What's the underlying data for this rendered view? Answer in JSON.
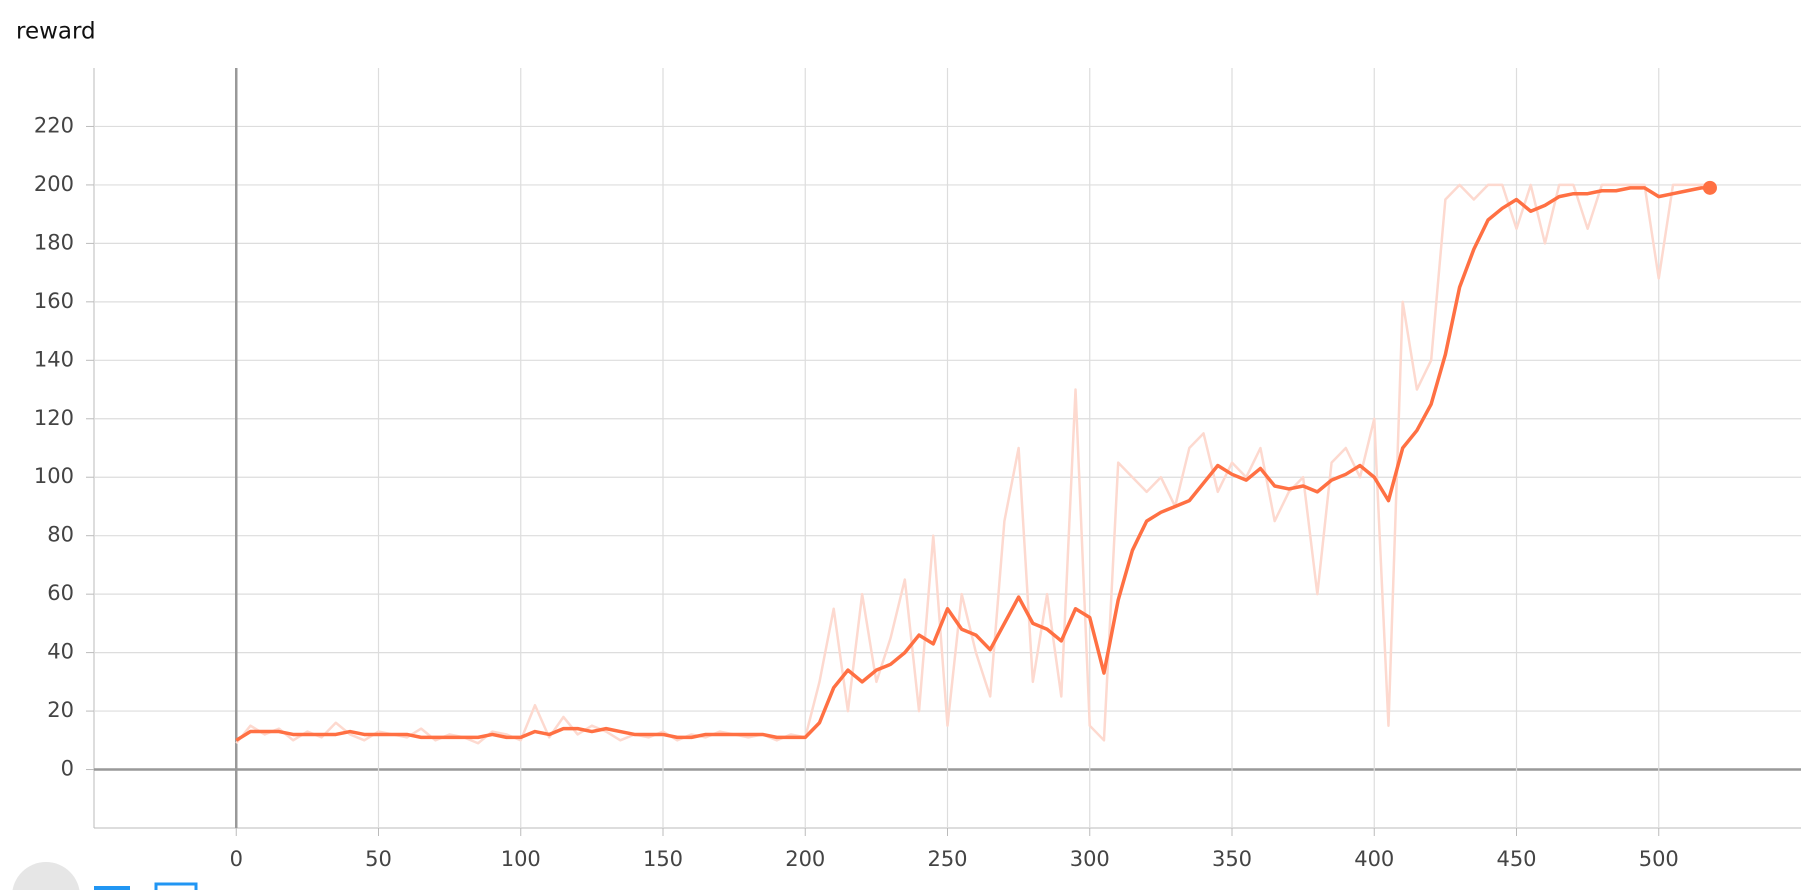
{
  "chart_data": {
    "type": "line",
    "title": "reward",
    "x": [
      0,
      5,
      10,
      15,
      20,
      25,
      30,
      35,
      40,
      45,
      50,
      55,
      60,
      65,
      70,
      75,
      80,
      85,
      90,
      95,
      100,
      105,
      110,
      115,
      120,
      125,
      130,
      135,
      140,
      145,
      150,
      155,
      160,
      165,
      170,
      175,
      180,
      185,
      190,
      195,
      200,
      205,
      210,
      215,
      220,
      225,
      230,
      235,
      240,
      245,
      250,
      255,
      260,
      265,
      270,
      275,
      280,
      285,
      290,
      295,
      300,
      305,
      310,
      315,
      320,
      325,
      330,
      335,
      340,
      345,
      350,
      355,
      360,
      365,
      370,
      375,
      380,
      385,
      390,
      395,
      400,
      405,
      410,
      415,
      420,
      425,
      430,
      435,
      440,
      445,
      450,
      455,
      460,
      465,
      470,
      475,
      480,
      485,
      490,
      495,
      500,
      505,
      510,
      515,
      518
    ],
    "series": [
      {
        "color": "#fdd9cf",
        "values": [
          9,
          15,
          12,
          14,
          10,
          13,
          11,
          16,
          12,
          10,
          13,
          12,
          11,
          14,
          10,
          12,
          11,
          9,
          13,
          12,
          10,
          22,
          11,
          18,
          12,
          15,
          13,
          10,
          12,
          11,
          13,
          10,
          12,
          11,
          13,
          12,
          11,
          12,
          10,
          12,
          11,
          30,
          55,
          20,
          60,
          30,
          45,
          65,
          20,
          80,
          15,
          60,
          40,
          25,
          85,
          110,
          30,
          60,
          25,
          130,
          15,
          10,
          105,
          100,
          95,
          100,
          90,
          110,
          115,
          95,
          105,
          100,
          110,
          85,
          95,
          100,
          60,
          105,
          110,
          100,
          120,
          15,
          160,
          130,
          140,
          195,
          200,
          195,
          200,
          200,
          185,
          200,
          180,
          200,
          200,
          185,
          200,
          200,
          200,
          200,
          168,
          200,
          200,
          200,
          200
        ]
      },
      {
        "color": "#ff7043",
        "values": [
          10,
          13,
          13,
          13,
          12,
          12,
          12,
          12,
          13,
          12,
          12,
          12,
          12,
          11,
          11,
          11,
          11,
          11,
          12,
          11,
          11,
          13,
          12,
          14,
          14,
          13,
          14,
          13,
          12,
          12,
          12,
          11,
          11,
          12,
          12,
          12,
          12,
          12,
          11,
          11,
          11,
          16,
          28,
          34,
          30,
          34,
          36,
          40,
          46,
          43,
          55,
          48,
          46,
          41,
          50,
          59,
          50,
          48,
          44,
          55,
          52,
          33,
          58,
          75,
          85,
          88,
          90,
          92,
          98,
          104,
          101,
          99,
          103,
          97,
          96,
          97,
          95,
          99,
          101,
          104,
          100,
          92,
          110,
          116,
          125,
          142,
          165,
          178,
          188,
          192,
          195,
          191,
          193,
          196,
          197,
          197,
          198,
          198,
          199,
          199,
          196,
          197,
          198,
          199,
          199
        ]
      }
    ],
    "xlim": [
      -50,
      550
    ],
    "ylim": [
      -20,
      240
    ],
    "xticks": [
      0,
      50,
      100,
      150,
      200,
      250,
      300,
      350,
      400,
      450,
      500
    ],
    "yticks": [
      0,
      20,
      40,
      60,
      80,
      100,
      120,
      140,
      160,
      180,
      200,
      220
    ],
    "grid": true
  }
}
